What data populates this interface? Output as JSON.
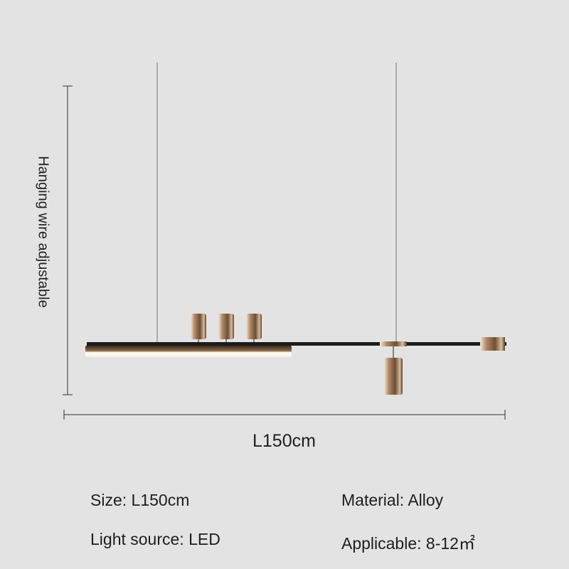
{
  "dimensions": {
    "height_label": "Hanging wire adjustable",
    "length_label": "L150cm"
  },
  "specs": {
    "size": "Size: L150cm",
    "material": "Material: Alloy",
    "light_source": "Light source: LED",
    "applicable": "Applicable: 8-12㎡"
  },
  "colors": {
    "background": "#e3e3e3",
    "metal": "#1c1c1c",
    "brass": "#8a6a4a",
    "led": "#fff8ec"
  }
}
